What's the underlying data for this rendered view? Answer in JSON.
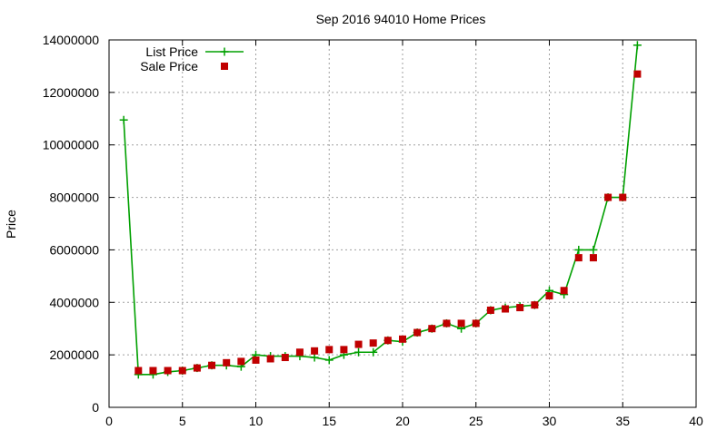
{
  "chart_data": {
    "type": "line",
    "title": "Sep 2016 94010 Home Prices",
    "xlabel": "",
    "ylabel": "Price",
    "xlim": [
      0,
      40
    ],
    "ylim": [
      0,
      14000000
    ],
    "x_ticks": [
      0,
      5,
      10,
      15,
      20,
      25,
      30,
      35,
      40
    ],
    "y_ticks": [
      0,
      2000000,
      4000000,
      6000000,
      8000000,
      10000000,
      12000000,
      14000000
    ],
    "grid": true,
    "legend_position": "top-left",
    "series": [
      {
        "name": "List Price",
        "style": "line-plus",
        "color": "#00a000",
        "points": [
          [
            1,
            10950000
          ],
          [
            2,
            1250000
          ],
          [
            3,
            1250000
          ],
          [
            4,
            1350000
          ],
          [
            5,
            1400000
          ],
          [
            6,
            1500000
          ],
          [
            7,
            1600000
          ],
          [
            8,
            1600000
          ],
          [
            9,
            1550000
          ],
          [
            10,
            2000000
          ],
          [
            11,
            1950000
          ],
          [
            12,
            1950000
          ],
          [
            13,
            1950000
          ],
          [
            14,
            1900000
          ],
          [
            15,
            1800000
          ],
          [
            16,
            2000000
          ],
          [
            17,
            2100000
          ],
          [
            18,
            2100000
          ],
          [
            19,
            2550000
          ],
          [
            20,
            2500000
          ],
          [
            21,
            2850000
          ],
          [
            22,
            3000000
          ],
          [
            23,
            3200000
          ],
          [
            24,
            3000000
          ],
          [
            25,
            3200000
          ],
          [
            26,
            3700000
          ],
          [
            27,
            3800000
          ],
          [
            28,
            3850000
          ],
          [
            29,
            3900000
          ],
          [
            30,
            4450000
          ],
          [
            31,
            4300000
          ],
          [
            32,
            6000000
          ],
          [
            33,
            6000000
          ],
          [
            34,
            8000000
          ],
          [
            35,
            8000000
          ],
          [
            36,
            13800000
          ]
        ]
      },
      {
        "name": "Sale Price",
        "style": "square",
        "color": "#c00000",
        "points": [
          [
            2,
            1400000
          ],
          [
            3,
            1400000
          ],
          [
            4,
            1400000
          ],
          [
            5,
            1400000
          ],
          [
            6,
            1500000
          ],
          [
            7,
            1600000
          ],
          [
            8,
            1700000
          ],
          [
            9,
            1750000
          ],
          [
            10,
            1800000
          ],
          [
            11,
            1850000
          ],
          [
            12,
            1900000
          ],
          [
            13,
            2100000
          ],
          [
            14,
            2150000
          ],
          [
            15,
            2200000
          ],
          [
            16,
            2200000
          ],
          [
            17,
            2400000
          ],
          [
            18,
            2450000
          ],
          [
            19,
            2550000
          ],
          [
            20,
            2600000
          ],
          [
            21,
            2850000
          ],
          [
            22,
            3000000
          ],
          [
            23,
            3200000
          ],
          [
            24,
            3200000
          ],
          [
            25,
            3200000
          ],
          [
            26,
            3700000
          ],
          [
            27,
            3750000
          ],
          [
            28,
            3800000
          ],
          [
            29,
            3900000
          ],
          [
            30,
            4250000
          ],
          [
            31,
            4450000
          ],
          [
            32,
            5700000
          ],
          [
            33,
            5700000
          ],
          [
            34,
            8000000
          ],
          [
            35,
            8000000
          ],
          [
            36,
            12700000
          ]
        ]
      }
    ]
  }
}
